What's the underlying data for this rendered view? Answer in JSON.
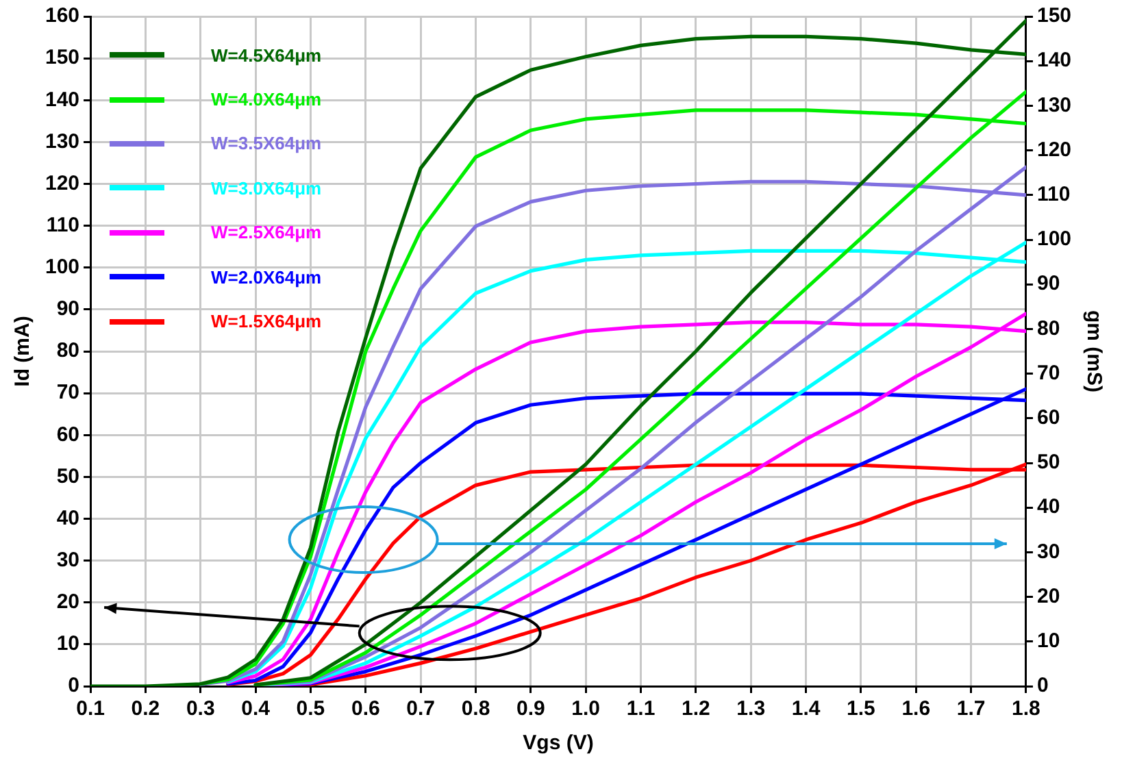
{
  "chart_data": {
    "type": "line",
    "xlabel": "Vgs (V)",
    "ylabel": "Id (mA)",
    "y2label": "gm (mS)",
    "xlim": [
      0.1,
      1.8
    ],
    "xticks": [
      0.1,
      0.2,
      0.3,
      0.4,
      0.5,
      0.6,
      0.7,
      0.8,
      0.9,
      {
        "value": 1,
        "label": "1.0"
      },
      1.1,
      1.2,
      1.3,
      1.4,
      1.5,
      1.6,
      1.7,
      1.8
    ],
    "ylim": [
      0,
      160
    ],
    "yticks": [
      0,
      10,
      20,
      30,
      40,
      50,
      60,
      70,
      80,
      90,
      100,
      110,
      120,
      130,
      140,
      150,
      160
    ],
    "y2lim": [
      0,
      150
    ],
    "y2ticks": [
      0,
      10,
      20,
      30,
      40,
      50,
      60,
      70,
      80,
      90,
      100,
      110,
      120,
      130,
      140,
      150
    ],
    "grid": true,
    "legend": "top left",
    "series": [
      {
        "name": "W=4.5X64μm",
        "color": "#006600",
        "x": [
          0.4,
          0.5,
          0.6,
          0.7,
          0.8,
          0.9,
          1.0,
          1.1,
          1.2,
          1.3,
          1.4,
          1.5,
          1.6,
          1.7,
          1.8
        ],
        "values": [
          0.3,
          2,
          10,
          20,
          31,
          42,
          53,
          67,
          80,
          94,
          107,
          120,
          133,
          146,
          159
        ]
      },
      {
        "name": "W=4.0X64μm",
        "color": "#00ee00",
        "x": [
          0.4,
          0.5,
          0.6,
          0.7,
          0.8,
          0.9,
          1.0,
          1.1,
          1.2,
          1.3,
          1.4,
          1.5,
          1.6,
          1.7,
          1.8
        ],
        "values": [
          0.3,
          1.5,
          8,
          17,
          27,
          37,
          47,
          59,
          71,
          83,
          95,
          107,
          119,
          131,
          142
        ]
      },
      {
        "name": "W=3.5X64μm",
        "color": "#8070e0",
        "x": [
          0.4,
          0.5,
          0.6,
          0.7,
          0.8,
          0.9,
          1.0,
          1.1,
          1.2,
          1.3,
          1.4,
          1.5,
          1.6,
          1.7,
          1.8
        ],
        "values": [
          0.2,
          1.2,
          7,
          14,
          23,
          32,
          42,
          52,
          63,
          73,
          83,
          93,
          104,
          114,
          124
        ]
      },
      {
        "name": "W=3.0X64μm",
        "color": "#00ffff",
        "x": [
          0.4,
          0.5,
          0.6,
          0.7,
          0.8,
          0.9,
          1.0,
          1.1,
          1.2,
          1.3,
          1.4,
          1.5,
          1.6,
          1.7,
          1.8
        ],
        "values": [
          0.2,
          1,
          5.5,
          12,
          19,
          27,
          35,
          44,
          53,
          62,
          71,
          80,
          89,
          98,
          106
        ]
      },
      {
        "name": "W=2.5X64μm",
        "color": "#ff00ff",
        "x": [
          0.4,
          0.5,
          0.6,
          0.7,
          0.8,
          0.9,
          1.0,
          1.1,
          1.2,
          1.3,
          1.4,
          1.5,
          1.6,
          1.7,
          1.8
        ],
        "values": [
          0.1,
          0.8,
          4.5,
          9.5,
          15,
          22,
          29,
          36,
          44,
          51,
          59,
          66,
          74,
          81,
          89
        ]
      },
      {
        "name": "W=2.0X64μm",
        "color": "#0000ff",
        "x": [
          0.4,
          0.5,
          0.6,
          0.7,
          0.8,
          0.9,
          1.0,
          1.1,
          1.2,
          1.3,
          1.4,
          1.5,
          1.6,
          1.7,
          1.8
        ],
        "values": [
          0.1,
          0.6,
          3.5,
          7.5,
          12,
          17,
          23,
          29,
          35,
          41,
          47,
          53,
          59,
          65,
          71
        ]
      },
      {
        "name": "W=1.5X64μm",
        "color": "#ff0000",
        "x": [
          0.4,
          0.5,
          0.6,
          0.7,
          0.8,
          0.9,
          1.0,
          1.1,
          1.2,
          1.3,
          1.4,
          1.5,
          1.6,
          1.7,
          1.8
        ],
        "values": [
          0.1,
          0.4,
          2.5,
          5.5,
          9,
          13,
          17,
          21,
          26,
          30,
          35,
          39,
          44,
          48,
          53
        ]
      },
      {
        "color": "#006600",
        "axis": "y2",
        "x": [
          0.1,
          0.2,
          0.3,
          0.35,
          0.4,
          0.45,
          0.5,
          0.55,
          0.6,
          0.65,
          0.7,
          0.8,
          0.9,
          1.0,
          1.1,
          1.2,
          1.3,
          1.4,
          1.5,
          1.6,
          1.7,
          1.8
        ],
        "values": [
          0,
          0,
          0.5,
          2,
          6,
          15,
          31,
          57,
          78,
          98,
          116,
          132,
          138,
          141,
          143.5,
          145,
          145.5,
          145.5,
          145,
          144,
          142.5,
          141.5
        ]
      },
      {
        "color": "#00ee00",
        "axis": "y2",
        "x": [
          0.3,
          0.35,
          0.4,
          0.45,
          0.5,
          0.55,
          0.6,
          0.65,
          0.7,
          0.8,
          0.9,
          1.0,
          1.1,
          1.2,
          1.3,
          1.4,
          1.5,
          1.6,
          1.7,
          1.8
        ],
        "values": [
          0.5,
          1.5,
          5,
          14,
          29,
          52,
          75,
          89,
          102,
          118.5,
          124.5,
          127,
          128,
          129,
          129,
          129,
          128.5,
          128,
          127,
          126
        ]
      },
      {
        "color": "#8070e0",
        "axis": "y2",
        "x": [
          0.3,
          0.35,
          0.4,
          0.45,
          0.5,
          0.55,
          0.6,
          0.65,
          0.7,
          0.8,
          0.9,
          1.0,
          1.1,
          1.2,
          1.3,
          1.4,
          1.5,
          1.6,
          1.7,
          1.8
        ],
        "values": [
          0.4,
          1.2,
          3.8,
          10,
          25,
          44,
          62.5,
          76,
          89,
          103,
          108.5,
          111,
          112,
          112.5,
          113,
          113,
          112.5,
          112,
          111,
          110
        ]
      },
      {
        "color": "#00ffff",
        "axis": "y2",
        "x": [
          0.35,
          0.4,
          0.45,
          0.5,
          0.55,
          0.6,
          0.65,
          0.7,
          0.8,
          0.9,
          1.0,
          1.1,
          1.2,
          1.3,
          1.4,
          1.5,
          1.6,
          1.7,
          1.8
        ],
        "values": [
          1,
          3.3,
          9,
          22,
          41,
          55.5,
          65.5,
          76,
          88,
          93,
          95.5,
          96.5,
          97,
          97.5,
          97.5,
          97.5,
          97,
          96,
          95
        ]
      },
      {
        "color": "#ff00ff",
        "axis": "y2",
        "x": [
          0.35,
          0.4,
          0.45,
          0.5,
          0.55,
          0.6,
          0.65,
          0.7,
          0.8,
          0.9,
          1.0,
          1.1,
          1.2,
          1.3,
          1.4,
          1.5,
          1.6,
          1.7,
          1.8
        ],
        "values": [
          0.8,
          2.3,
          6,
          15,
          30,
          43.5,
          54.5,
          63.5,
          71,
          77,
          79.5,
          80.5,
          81,
          81.5,
          81.5,
          81,
          81,
          80.5,
          79.5
        ]
      },
      {
        "color": "#0000ff",
        "axis": "y2",
        "x": [
          0.35,
          0.4,
          0.45,
          0.5,
          0.55,
          0.6,
          0.65,
          0.7,
          0.8,
          0.9,
          1.0,
          1.1,
          1.2,
          1.3,
          1.4,
          1.5,
          1.6,
          1.7,
          1.8
        ],
        "values": [
          0.5,
          1.3,
          4.4,
          12,
          24,
          35,
          44.5,
          50,
          59,
          63,
          64.5,
          65,
          65.5,
          65.5,
          65.5,
          65.5,
          65,
          64.5,
          64
        ]
      },
      {
        "color": "#ff0000",
        "axis": "y2",
        "x": [
          0.35,
          0.4,
          0.45,
          0.5,
          0.55,
          0.6,
          0.65,
          0.7,
          0.8,
          0.9,
          1.0,
          1.1,
          1.2,
          1.3,
          1.4,
          1.5,
          1.6,
          1.7,
          1.8
        ],
        "values": [
          0.4,
          1.1,
          2.8,
          7,
          15,
          24,
          32,
          38,
          45,
          48,
          48.5,
          49,
          49.5,
          49.5,
          49.5,
          49.5,
          49,
          48.5,
          48.5
        ]
      }
    ]
  }
}
